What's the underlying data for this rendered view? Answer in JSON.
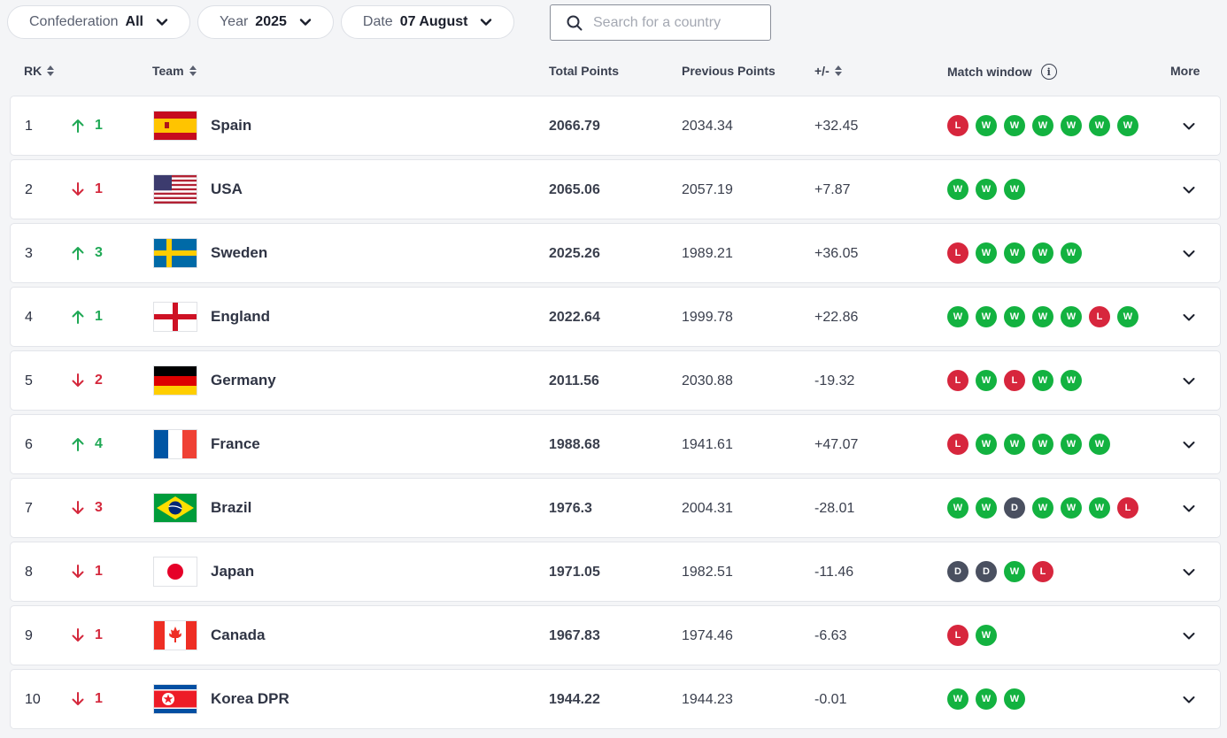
{
  "filters": {
    "confederation": {
      "label": "Confederation",
      "value": "All"
    },
    "year": {
      "label": "Year",
      "value": "2025"
    },
    "date": {
      "label": "Date",
      "value": "07 August"
    },
    "search_placeholder": "Search for a country"
  },
  "columns": {
    "rank": "RK",
    "team": "Team",
    "total": "Total Points",
    "previous": "Previous Points",
    "diff": "+/-",
    "match_window": "Match window",
    "more": "More"
  },
  "colors": {
    "win": "#13b240",
    "loss": "#d7263d",
    "draw": "#4a5060",
    "up": "#1fa855",
    "down": "#d4283c"
  },
  "rows": [
    {
      "rank": "1",
      "dir": "up",
      "move": "1",
      "flag": "spain-flag",
      "team": "Spain",
      "total": "2066.79",
      "previous": "2034.34",
      "diff": "+32.45",
      "results": [
        "L",
        "W",
        "W",
        "W",
        "W",
        "W",
        "W"
      ]
    },
    {
      "rank": "2",
      "dir": "down",
      "move": "1",
      "flag": "usa-flag",
      "team": "USA",
      "total": "2065.06",
      "previous": "2057.19",
      "diff": "+7.87",
      "results": [
        "W",
        "W",
        "W"
      ]
    },
    {
      "rank": "3",
      "dir": "up",
      "move": "3",
      "flag": "sweden-flag",
      "team": "Sweden",
      "total": "2025.26",
      "previous": "1989.21",
      "diff": "+36.05",
      "results": [
        "L",
        "W",
        "W",
        "W",
        "W"
      ]
    },
    {
      "rank": "4",
      "dir": "up",
      "move": "1",
      "flag": "england-flag",
      "team": "England",
      "total": "2022.64",
      "previous": "1999.78",
      "diff": "+22.86",
      "results": [
        "W",
        "W",
        "W",
        "W",
        "W",
        "L",
        "W"
      ]
    },
    {
      "rank": "5",
      "dir": "down",
      "move": "2",
      "flag": "germany-flag",
      "team": "Germany",
      "total": "2011.56",
      "previous": "2030.88",
      "diff": "-19.32",
      "results": [
        "L",
        "W",
        "L",
        "W",
        "W"
      ]
    },
    {
      "rank": "6",
      "dir": "up",
      "move": "4",
      "flag": "france-flag",
      "team": "France",
      "total": "1988.68",
      "previous": "1941.61",
      "diff": "+47.07",
      "results": [
        "L",
        "W",
        "W",
        "W",
        "W",
        "W"
      ]
    },
    {
      "rank": "7",
      "dir": "down",
      "move": "3",
      "flag": "brazil-flag",
      "team": "Brazil",
      "total": "1976.3",
      "previous": "2004.31",
      "diff": "-28.01",
      "results": [
        "W",
        "W",
        "D",
        "W",
        "W",
        "W",
        "L"
      ]
    },
    {
      "rank": "8",
      "dir": "down",
      "move": "1",
      "flag": "japan-flag",
      "team": "Japan",
      "total": "1971.05",
      "previous": "1982.51",
      "diff": "-11.46",
      "results": [
        "D",
        "D",
        "W",
        "L"
      ]
    },
    {
      "rank": "9",
      "dir": "down",
      "move": "1",
      "flag": "canada-flag",
      "team": "Canada",
      "total": "1967.83",
      "previous": "1974.46",
      "diff": "-6.63",
      "results": [
        "L",
        "W"
      ]
    },
    {
      "rank": "10",
      "dir": "down",
      "move": "1",
      "flag": "korea-dpr-flag",
      "team": "Korea DPR",
      "total": "1944.22",
      "previous": "1944.23",
      "diff": "-0.01",
      "results": [
        "W",
        "W",
        "W"
      ]
    }
  ]
}
